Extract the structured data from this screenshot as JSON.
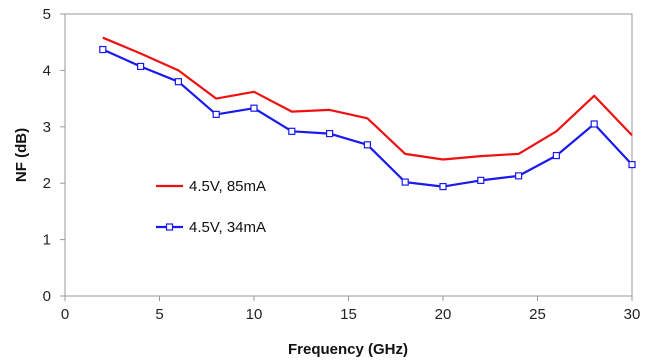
{
  "chart_data": {
    "type": "line",
    "title": "",
    "xlabel": "Frequency (GHz)",
    "ylabel": "NF (dB)",
    "xlim": [
      0,
      30
    ],
    "ylim": [
      0,
      5
    ],
    "xticks": [
      0,
      5,
      10,
      15,
      20,
      25,
      30
    ],
    "yticks": [
      0,
      1,
      2,
      3,
      4,
      5
    ],
    "grid": false,
    "legend_position": "left-middle",
    "x": [
      2,
      4,
      6,
      8,
      10,
      12,
      14,
      16,
      18,
      20,
      22,
      24,
      26,
      28,
      30
    ],
    "series": [
      {
        "name": "4.5V, 85mA",
        "color": "#ee1111",
        "marker": "none",
        "values": [
          4.58,
          4.3,
          4.0,
          3.5,
          3.62,
          3.27,
          3.3,
          3.15,
          2.52,
          2.42,
          2.48,
          2.52,
          2.92,
          3.55,
          2.85
        ]
      },
      {
        "name": "4.5V, 34mA",
        "color": "#1a1aee",
        "marker": "square",
        "values": [
          4.37,
          4.07,
          3.8,
          3.22,
          3.33,
          2.92,
          2.88,
          2.68,
          2.02,
          1.94,
          2.05,
          2.13,
          2.49,
          3.05,
          2.33
        ]
      }
    ]
  }
}
